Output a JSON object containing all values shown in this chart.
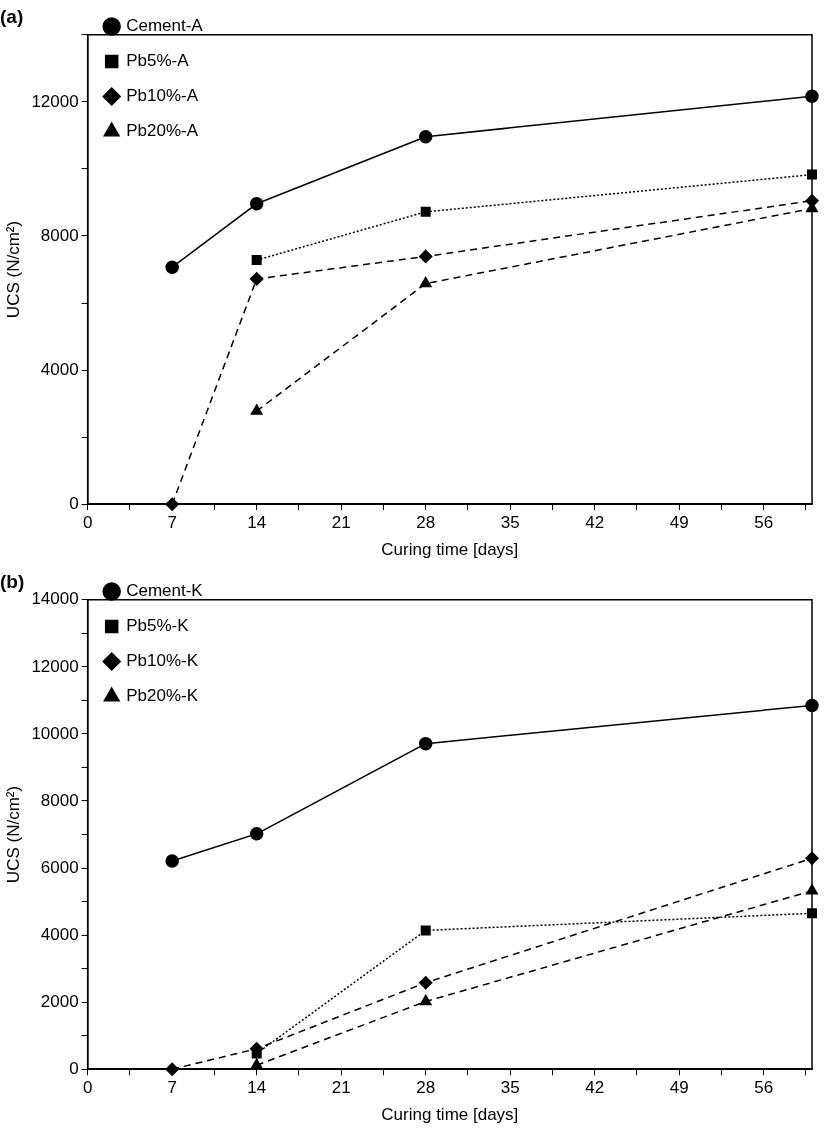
{
  "chart_data": [
    {
      "type": "line",
      "title": "(a)",
      "xlabel": "Curing time [days]",
      "ylabel": "UCS (N/cm²)",
      "xlim": [
        0,
        60
      ],
      "ylim": [
        0,
        14000
      ],
      "xticks": [
        0,
        {
          "value": 3.5,
          "label": null
        },
        7,
        {
          "value": 10.5,
          "label": null
        },
        14,
        {
          "value": 17.5,
          "label": null
        },
        21,
        {
          "value": 24.5,
          "label": null
        },
        28,
        {
          "value": 31.5,
          "label": null
        },
        35,
        {
          "value": 38.5,
          "label": null
        },
        42,
        {
          "value": 45.5,
          "label": null
        },
        49,
        {
          "value": 52.5,
          "label": null
        },
        56,
        {
          "value": 59.5,
          "label": null
        }
      ],
      "yticks": [
        0,
        {
          "value": 2000,
          "label": null
        },
        4000,
        {
          "value": 6000,
          "label": null
        },
        8000,
        {
          "value": 10000,
          "label": null
        },
        12000,
        {
          "value": 14000,
          "label": null
        }
      ],
      "grid": false,
      "legend": "top left",
      "series": [
        {
          "name": "Cement-A",
          "color": "#000000",
          "marker": "circle",
          "line_style": "solid",
          "x": [
            7,
            14,
            28,
            60
          ],
          "values": [
            7070,
            8960,
            10960,
            12170
          ]
        },
        {
          "name": "Pb5%-A",
          "color": "#000000",
          "marker": "square",
          "line_style": "dotted",
          "x": [
            14,
            28,
            60
          ],
          "values": [
            7280,
            8720,
            9830
          ]
        },
        {
          "name": "Pb10%-A",
          "color": "#000000",
          "marker": "diamond",
          "line_style": "dashed",
          "x": [
            7,
            14,
            28,
            60
          ],
          "values": [
            0,
            6720,
            7390,
            9050
          ]
        },
        {
          "name": "Pb20%-A",
          "color": "#000000",
          "marker": "triangle",
          "line_style": "dashed",
          "x": [
            14,
            28,
            60
          ],
          "values": [
            2780,
            6580,
            8820
          ]
        }
      ]
    },
    {
      "type": "line",
      "title": "(b)",
      "xlabel": "Curing time [days]",
      "ylabel": "UCS (N/cm²)",
      "xlim": [
        0,
        60
      ],
      "ylim": [
        0,
        14000
      ],
      "xticks": [
        0,
        {
          "value": 3.5,
          "label": null
        },
        7,
        {
          "value": 10.5,
          "label": null
        },
        14,
        {
          "value": 17.5,
          "label": null
        },
        21,
        {
          "value": 24.5,
          "label": null
        },
        28,
        {
          "value": 31.5,
          "label": null
        },
        35,
        {
          "value": 38.5,
          "label": null
        },
        42,
        {
          "value": 45.5,
          "label": null
        },
        49,
        {
          "value": 52.5,
          "label": null
        },
        56,
        {
          "value": 59.5,
          "label": null
        }
      ],
      "yticks": [
        0,
        {
          "value": 1000,
          "label": null
        },
        2000,
        {
          "value": 3000,
          "label": null
        },
        4000,
        {
          "value": 5000,
          "label": null
        },
        6000,
        {
          "value": 7000,
          "label": null
        },
        8000,
        {
          "value": 9000,
          "label": null
        },
        10000,
        {
          "value": 11000,
          "label": null
        },
        12000,
        {
          "value": 13000,
          "label": null
        },
        14000
      ],
      "grid": false,
      "legend": "top left",
      "series": [
        {
          "name": "Cement-K",
          "color": "#000000",
          "marker": "circle",
          "line_style": "solid",
          "x": [
            7,
            14,
            28,
            60
          ],
          "values": [
            6210,
            7020,
            9710,
            10850
          ]
        },
        {
          "name": "Pb5%-K",
          "color": "#000000",
          "marker": "square",
          "line_style": "dotted",
          "x": [
            14,
            28,
            60
          ],
          "values": [
            470,
            4140,
            4650
          ]
        },
        {
          "name": "Pb10%-K",
          "color": "#000000",
          "marker": "diamond",
          "line_style": "dashed",
          "x": [
            7,
            14,
            28,
            60
          ],
          "values": [
            0,
            610,
            2580,
            6290
          ]
        },
        {
          "name": "Pb20%-K",
          "color": "#000000",
          "marker": "triangle",
          "line_style": "dashed",
          "x": [
            14,
            28,
            60
          ],
          "values": [
            120,
            2020,
            5320
          ]
        }
      ]
    }
  ]
}
